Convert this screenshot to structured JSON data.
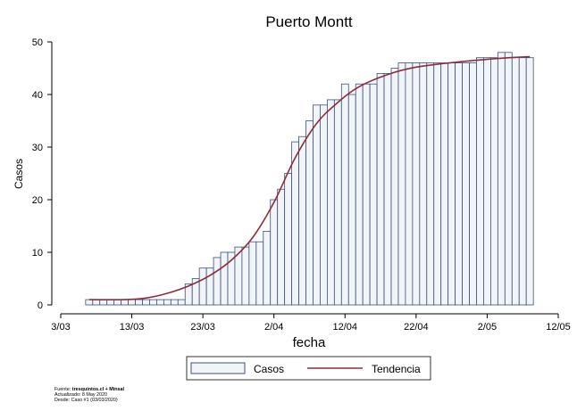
{
  "chart_data": {
    "type": "bar",
    "title": "Puerto Montt",
    "xlabel": "fecha",
    "ylabel": "Casos",
    "ylim": [
      0,
      50
    ],
    "yticks": [
      0,
      10,
      20,
      30,
      40,
      50
    ],
    "xlim": [
      "2020-03-03",
      "2020-05-12"
    ],
    "xticks": [
      {
        "date": "2020-03-03",
        "label": "3/03"
      },
      {
        "date": "2020-03-13",
        "label": "13/03"
      },
      {
        "date": "2020-03-23",
        "label": "23/03"
      },
      {
        "date": "2020-04-02",
        "label": "2/04"
      },
      {
        "date": "2020-04-12",
        "label": "12/04"
      },
      {
        "date": "2020-04-22",
        "label": "22/04"
      },
      {
        "date": "2020-05-02",
        "label": "2/05"
      },
      {
        "date": "2020-05-12",
        "label": "12/05"
      }
    ],
    "grid": false,
    "legend_position": "bottom",
    "series": [
      {
        "name": "Casos",
        "kind": "bar",
        "color": "#f2f5f8",
        "edge_color": "#3c5078",
        "start_date": "2020-03-07",
        "values": [
          1,
          1,
          1,
          1,
          1,
          1,
          1,
          1,
          1,
          1,
          1,
          1,
          1,
          1,
          4,
          5,
          7,
          7,
          9,
          10,
          10,
          11,
          11,
          12,
          12,
          14,
          20,
          22,
          25,
          31,
          32,
          35,
          38,
          38,
          39,
          39,
          42,
          40,
          42,
          42,
          42,
          44,
          44,
          45,
          46,
          46,
          46,
          46,
          46,
          46,
          46,
          46,
          46,
          46,
          46,
          47,
          47,
          47,
          48,
          48,
          47,
          47,
          47
        ]
      },
      {
        "name": "Tendencia",
        "kind": "line",
        "color": "#8b2e3a",
        "points": [
          [
            "2020-03-07",
            1.0
          ],
          [
            "2020-03-12",
            1.0
          ],
          [
            "2020-03-15",
            1.3
          ],
          [
            "2020-03-18",
            2.2
          ],
          [
            "2020-03-21",
            3.6
          ],
          [
            "2020-03-24",
            5.6
          ],
          [
            "2020-03-27",
            8.5
          ],
          [
            "2020-03-30",
            12.8
          ],
          [
            "2020-04-02",
            19.5
          ],
          [
            "2020-04-05",
            28.0
          ],
          [
            "2020-04-08",
            34.5
          ],
          [
            "2020-04-11",
            38.5
          ],
          [
            "2020-04-14",
            41.5
          ],
          [
            "2020-04-18",
            43.8
          ],
          [
            "2020-04-22",
            45.2
          ],
          [
            "2020-04-28",
            46.2
          ],
          [
            "2020-05-04",
            46.9
          ],
          [
            "2020-05-08",
            47.2
          ]
        ]
      }
    ]
  },
  "footer": {
    "source_prefix": "Fuente: ",
    "source_value": "tresquintos.cl + Minsal",
    "updated": "Actualizado: 8 May 2020",
    "since": "Desde: Caso #1  (03/03/2020)"
  }
}
